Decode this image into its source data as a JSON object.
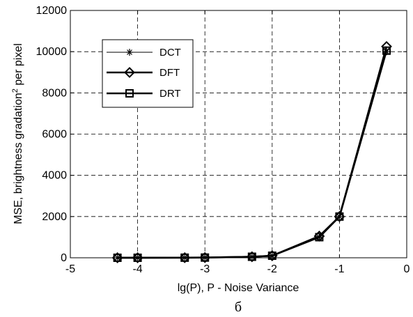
{
  "chart_data": {
    "type": "line",
    "xlabel": "lg(P), P - Noise Variance",
    "ylabel": "MSE, brightness gradation",
    "ylabel_sup": "2",
    "ylabel_tail": " per pixel",
    "caption": "б",
    "xlim": [
      -5,
      0
    ],
    "ylim": [
      0,
      12000
    ],
    "xticks": [
      -5,
      -4,
      -3,
      -2,
      -1,
      0
    ],
    "yticks": [
      0,
      2000,
      4000,
      6000,
      8000,
      10000,
      12000
    ],
    "grid": true,
    "legend_position": "upper-left",
    "x": [
      -4.3,
      -4,
      -3.3,
      -3,
      -2.3,
      -2,
      -1.3,
      -1,
      -0.3
    ],
    "series": [
      {
        "name": "DCT",
        "marker": "star",
        "line": "thin",
        "values": [
          1,
          1,
          5,
          10,
          50,
          100,
          1000,
          2000,
          10000
        ]
      },
      {
        "name": "DFT",
        "marker": "diamond",
        "line": "thick",
        "values": [
          1,
          1,
          5,
          10,
          50,
          100,
          1050,
          2000,
          10250
        ]
      },
      {
        "name": "DRT",
        "marker": "square",
        "line": "thick",
        "values": [
          1,
          1,
          5,
          10,
          50,
          100,
          1000,
          2000,
          10050
        ]
      }
    ]
  }
}
